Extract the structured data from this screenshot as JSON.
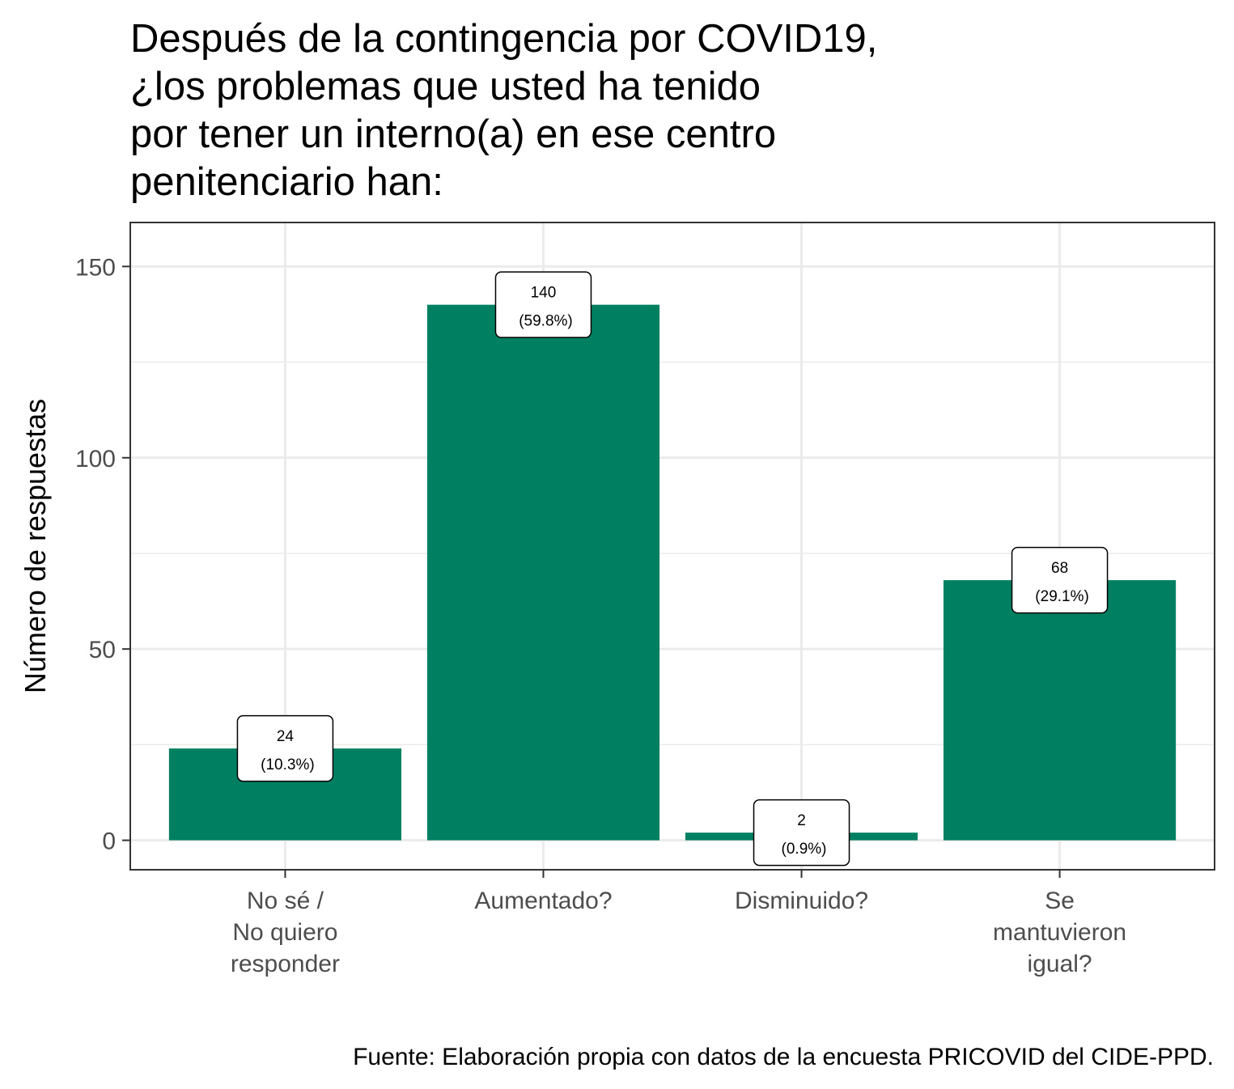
{
  "chart_data": {
    "type": "bar",
    "title_lines": [
      "Después de la contingencia por COVID19,",
      "¿los problemas que usted ha tenido",
      "por tener un interno(a) en ese centro",
      "penitenciario han:"
    ],
    "categories": [
      [
        "No sé /",
        "No quiero",
        "responder"
      ],
      [
        "Aumentado?"
      ],
      [
        "Disminuido?"
      ],
      [
        "Se",
        "mantuvieron",
        "igual?"
      ]
    ],
    "values": [
      24,
      140,
      2,
      68
    ],
    "value_labels": [
      "24",
      "140",
      "2",
      "68"
    ],
    "percent_labels": [
      "(10.3%)",
      "(59.8%)",
      "(0.9%)",
      "(29.1%)"
    ],
    "ylabel": "Número de respuestas",
    "xlabel": "",
    "ylim": [
      -7.7,
      161.5
    ],
    "yticks": [
      0,
      50,
      100,
      150
    ],
    "ytick_labels": [
      "0",
      "50",
      "100",
      "150"
    ],
    "grid": true,
    "bar_color": "#008060",
    "caption": "Fuente: Elaboración propia con datos de la encuesta PRICOVID del CIDE-PPD."
  }
}
